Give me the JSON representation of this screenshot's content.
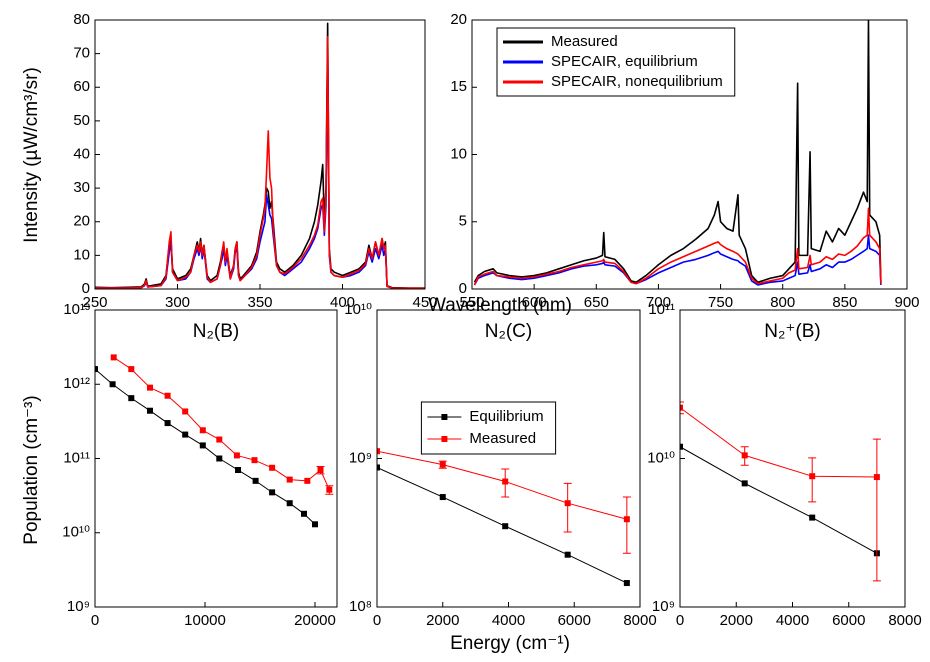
{
  "chart_data": [
    {
      "type": "line",
      "ylabel": "Intensity (µW/cm³/sr)",
      "xlabel": "Wavelength (nm)",
      "xlim": [
        250,
        450
      ],
      "xticks": [
        250,
        300,
        350,
        400,
        450
      ],
      "ylim": [
        0,
        80
      ],
      "yticks": [
        0,
        10,
        20,
        30,
        40,
        50,
        60,
        70,
        80
      ],
      "x": [
        250,
        260,
        270,
        278,
        280,
        281,
        282,
        290,
        293,
        295,
        296,
        297,
        300,
        305,
        308,
        310,
        312,
        313,
        314,
        315,
        316,
        318,
        320,
        324,
        326,
        327,
        328,
        329,
        330,
        332,
        334,
        335,
        336,
        337,
        338,
        340,
        345,
        348,
        350,
        352,
        353,
        354,
        355,
        356,
        357,
        358,
        360,
        362,
        365,
        370,
        375,
        380,
        383,
        385,
        387,
        388,
        389,
        390,
        391,
        392,
        393,
        395,
        400,
        405,
        410,
        414,
        416,
        418,
        420,
        422,
        424,
        425,
        426,
        427,
        430,
        440,
        450
      ],
      "series": [
        {
          "color": "#000000",
          "values": [
            0.5,
            0.4,
            0.5,
            0.6,
            1.5,
            3,
            0.8,
            1.5,
            4,
            13,
            15,
            6,
            3,
            4,
            6,
            10,
            14,
            11,
            15,
            10,
            13,
            4,
            2.5,
            4,
            8,
            11,
            13,
            8,
            11,
            4,
            7,
            12,
            14,
            5,
            3,
            4,
            7,
            11,
            17,
            22,
            25,
            30,
            29,
            24,
            26,
            20,
            8,
            6,
            5,
            7,
            10,
            15,
            20,
            25,
            32,
            37,
            20,
            30,
            79,
            12,
            6,
            5,
            4,
            5,
            6,
            8,
            13,
            9,
            14,
            10,
            15,
            12,
            14,
            1,
            0.4,
            0.3,
            0.3
          ]
        },
        {
          "color": "#0000ff",
          "values": [
            0.3,
            0.3,
            0.3,
            0.4,
            1,
            2,
            0.6,
            1,
            3,
            11,
            14,
            5,
            2.5,
            3,
            5,
            9,
            12,
            10,
            13,
            9,
            12,
            3,
            2,
            3,
            7,
            9,
            12,
            7,
            10,
            3,
            6,
            11,
            12,
            4,
            2.5,
            3.5,
            6,
            9,
            14,
            18,
            20,
            28,
            25,
            22,
            21,
            16,
            7,
            5,
            4,
            6,
            8,
            12,
            15,
            18,
            24,
            25,
            16,
            25,
            70,
            10,
            5,
            4,
            3.5,
            4,
            5,
            7,
            11,
            8,
            12,
            9,
            13,
            10,
            12,
            0.8,
            0.3,
            0.2,
            0.2
          ]
        },
        {
          "color": "#ff0000",
          "values": [
            0.3,
            0.3,
            0.3,
            0.4,
            1.2,
            2.5,
            0.6,
            1,
            3.5,
            14,
            17,
            5,
            2.5,
            3.5,
            5,
            10,
            13,
            11,
            14,
            10,
            13,
            3.5,
            2,
            3,
            7,
            11,
            14,
            8,
            12,
            3,
            7,
            12,
            14,
            4,
            2.5,
            3.5,
            6.5,
            10,
            16,
            21,
            24,
            35,
            47,
            33,
            30,
            18,
            7,
            5,
            4.5,
            6.5,
            9,
            13,
            16,
            19,
            26,
            27,
            17,
            28,
            75,
            11,
            5,
            4,
            3.5,
            4.5,
            5.5,
            7.5,
            12,
            9,
            14,
            10,
            15,
            12,
            13,
            0.8,
            0.3,
            0.2,
            0.2
          ]
        }
      ]
    },
    {
      "type": "line",
      "legend": "upper left",
      "xlim": [
        550,
        900
      ],
      "xticks": [
        550,
        600,
        650,
        700,
        750,
        800,
        850,
        900
      ],
      "ylim": [
        0,
        20
      ],
      "yticks": [
        0,
        5,
        10,
        15,
        20
      ],
      "x": [
        552,
        555,
        560,
        567,
        570,
        580,
        590,
        600,
        610,
        620,
        630,
        640,
        650,
        655,
        656,
        657,
        665,
        672,
        678,
        682,
        690,
        700,
        710,
        720,
        730,
        740,
        745,
        748,
        750,
        755,
        760,
        764,
        765,
        770,
        775,
        780,
        790,
        800,
        805,
        810,
        812,
        813,
        820,
        822,
        823,
        830,
        835,
        840,
        845,
        850,
        855,
        860,
        865,
        868,
        869,
        870,
        875,
        878,
        879
      ],
      "series": [
        {
          "name": "Measured",
          "color": "#000000",
          "values": [
            0.5,
            1,
            1.3,
            1.5,
            1.2,
            1,
            0.9,
            1,
            1.2,
            1.5,
            1.8,
            2.1,
            2.3,
            2.5,
            4.2,
            2.4,
            2.2,
            1.5,
            0.6,
            0.5,
            1,
            1.8,
            2.5,
            3,
            3.7,
            4.5,
            5.5,
            6.5,
            5,
            4.5,
            4.3,
            7,
            4,
            3,
            1,
            0.5,
            0.8,
            1,
            1.5,
            2,
            15.3,
            2.5,
            2.5,
            10.2,
            3,
            2.8,
            4.3,
            3.5,
            4.5,
            4,
            5,
            6,
            7.2,
            6.5,
            20,
            5.5,
            5,
            4,
            0.5
          ]
        },
        {
          "name": "SPECAIR, equilibrium",
          "color": "#0000ff",
          "values": [
            0.3,
            0.8,
            1,
            1.2,
            1,
            0.8,
            0.7,
            0.8,
            1,
            1.2,
            1.5,
            1.7,
            1.8,
            1.9,
            2,
            1.8,
            1.7,
            1.2,
            0.5,
            0.4,
            0.7,
            1.2,
            1.6,
            2,
            2.2,
            2.5,
            2.7,
            2.8,
            2.6,
            2.4,
            2.2,
            2.1,
            2,
            1.7,
            0.6,
            0.3,
            0.5,
            0.6,
            0.8,
            1,
            2,
            1.1,
            1.2,
            1.8,
            1.3,
            1.5,
            1.8,
            1.6,
            2,
            2,
            2.2,
            2.5,
            2.8,
            3,
            4,
            3,
            2.8,
            2.5,
            0.3
          ]
        },
        {
          "name": "SPECAIR, nonequilibrium",
          "color": "#ff0000",
          "values": [
            0.3,
            0.9,
            1.1,
            1.3,
            1,
            0.9,
            0.8,
            0.9,
            1.1,
            1.3,
            1.6,
            1.8,
            2,
            2.1,
            2.2,
            2,
            1.9,
            1.3,
            0.5,
            0.4,
            0.8,
            1.5,
            2,
            2.4,
            2.8,
            3.2,
            3.4,
            3.5,
            3.3,
            3,
            2.8,
            2.6,
            2.5,
            2,
            0.8,
            0.4,
            0.6,
            0.8,
            1.2,
            1.4,
            3,
            1.5,
            1.6,
            2.5,
            1.8,
            2,
            2.4,
            2.2,
            2.6,
            2.5,
            2.8,
            3.2,
            3.8,
            4,
            6,
            4,
            3.5,
            3,
            0.4
          ]
        }
      ]
    },
    {
      "type": "line",
      "markers": true,
      "title": "N₂(B)",
      "ylabel": "Population (cm⁻³)",
      "yscale": "log",
      "xlim": [
        0,
        22000
      ],
      "xticks": [
        0,
        10000,
        20000
      ],
      "ylim": [
        1000000000.0,
        10000000000000.0
      ],
      "yticks": [
        {
          "value": 1000000000.0,
          "label": "10⁹"
        },
        {
          "value": 10000000000.0,
          "label": "10¹⁰"
        },
        {
          "value": 100000000000.0,
          "label": "10¹¹"
        },
        {
          "value": 1000000000000.0,
          "label": "10¹²"
        },
        {
          "value": 10000000000000.0,
          "label": "10¹³"
        }
      ],
      "series": [
        {
          "color": "#000000",
          "x": [
            0,
            1600,
            3300,
            5000,
            6600,
            8200,
            9800,
            11300,
            13000,
            14600,
            16100,
            17700,
            19000,
            20000
          ],
          "values": [
            1600000000000.0,
            1000000000000.0,
            650000000000.0,
            440000000000.0,
            300000000000.0,
            210000000000.0,
            150000000000.0,
            100000000000.0,
            70000000000.0,
            50000000000.0,
            35000000000.0,
            25000000000.0,
            18000000000.0,
            13000000000.0
          ]
        },
        {
          "color": "#ff0000",
          "x": [
            1700,
            3300,
            5000,
            6600,
            8200,
            9800,
            11300,
            12900,
            14500,
            16100,
            17700,
            19300,
            20500,
            21300
          ],
          "values": [
            2300000000000.0,
            1600000000000.0,
            900000000000.0,
            700000000000.0,
            430000000000.0,
            240000000000.0,
            180000000000.0,
            110000000000.0,
            95000000000.0,
            75000000000.0,
            52000000000.0,
            50000000000.0,
            70000000000.0,
            38000000000.0
          ],
          "errors": [
            null,
            null,
            null,
            null,
            null,
            null,
            null,
            null,
            null,
            null,
            null,
            null,
            8000000000.0,
            5000000000.0
          ]
        }
      ]
    },
    {
      "type": "line",
      "markers": true,
      "title": "N₂(C)",
      "xlabel": "Energy (cm⁻¹)",
      "yscale": "log",
      "legend": "upper center",
      "xlim": [
        0,
        8000
      ],
      "xticks": [
        0,
        2000,
        4000,
        6000,
        8000
      ],
      "ylim": [
        100000000.0,
        10000000000.0
      ],
      "yticks": [
        {
          "value": 100000000.0,
          "label": "10⁸"
        },
        {
          "value": 1000000000.0,
          "label": "10⁹"
        },
        {
          "value": 10000000000.0,
          "label": "10¹⁰"
        }
      ],
      "series": [
        {
          "name": "Equilibrium",
          "color": "#000000",
          "x": [
            0,
            2000,
            3900,
            5800,
            7600
          ],
          "values": [
            870000000.0,
            550000000.0,
            350000000.0,
            225000000.0,
            145000000.0
          ]
        },
        {
          "name": "Measured",
          "color": "#ff0000",
          "x": [
            0,
            2000,
            3900,
            5800,
            7600
          ],
          "values": [
            1120000000.0,
            910000000.0,
            700000000.0,
            500000000.0,
            390000000.0
          ],
          "errors": [
            null,
            50000000.0,
            150000000.0,
            180000000.0,
            160000000.0
          ]
        }
      ]
    },
    {
      "type": "line",
      "markers": true,
      "title": "N₂⁺(B)",
      "yscale": "log",
      "xlim": [
        0,
        8000
      ],
      "xticks": [
        0,
        2000,
        4000,
        6000,
        8000
      ],
      "ylim": [
        1000000000.0,
        100000000000.0
      ],
      "yticks": [
        {
          "value": 1000000000.0,
          "label": "10⁹"
        },
        {
          "value": 10000000000.0,
          "label": "10¹⁰"
        },
        {
          "value": 100000000000.0,
          "label": "10¹¹"
        }
      ],
      "series": [
        {
          "color": "#000000",
          "x": [
            0,
            2300,
            4700,
            7000
          ],
          "values": [
            12000000000.0,
            6800000000.0,
            4000000000.0,
            2300000000.0
          ]
        },
        {
          "color": "#ff0000",
          "x": [
            0,
            2300,
            4700,
            7000
          ],
          "values": [
            22000000000.0,
            10500000000.0,
            7600000000.0,
            7500000000.0
          ],
          "errors": [
            2000000000.0,
            1500000000.0,
            2500000000.0,
            6000000000.0
          ]
        }
      ]
    }
  ]
}
